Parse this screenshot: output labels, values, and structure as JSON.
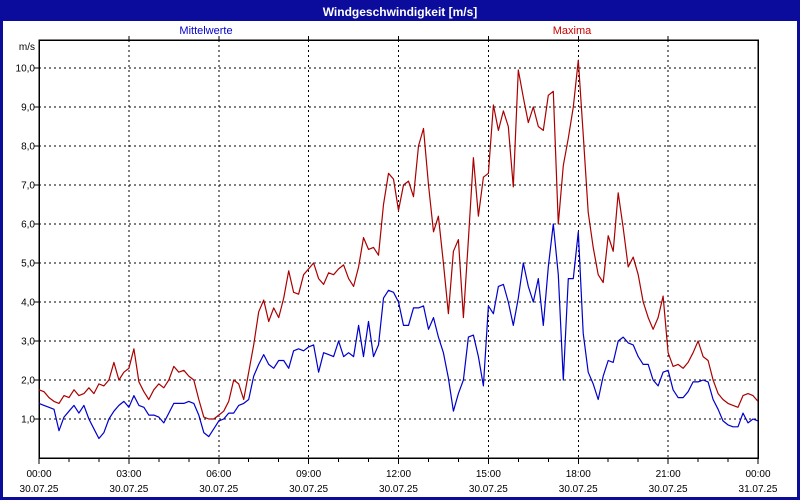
{
  "window": {
    "title": "Windgeschwindigkeit [m/s]"
  },
  "legend": {
    "mittelwerte": {
      "label": "Mittelwerte",
      "color": "#0000cc"
    },
    "maxima": {
      "label": "Maxima",
      "color": "#cc0000"
    }
  },
  "colors": {
    "titlebar_bg": "#0b0b9c",
    "titlebar_text": "#ffffff",
    "border": "#0b0b9c",
    "plot_bg": "#ffffff",
    "frame": "#000000",
    "grid": "#000000",
    "tick_text": "#000000"
  },
  "y_axis": {
    "unit": "m/s",
    "min": 0,
    "max": 10.72,
    "ticks": [
      {
        "value": 1,
        "label": "1,0"
      },
      {
        "value": 2,
        "label": "2,0"
      },
      {
        "value": 3,
        "label": "3,0"
      },
      {
        "value": 4,
        "label": "4,0"
      },
      {
        "value": 5,
        "label": "5,0"
      },
      {
        "value": 6,
        "label": "6,0"
      },
      {
        "value": 7,
        "label": "7,0"
      },
      {
        "value": 8,
        "label": "8,0"
      },
      {
        "value": 9,
        "label": "9,0"
      },
      {
        "value": 10,
        "label": "10,0"
      }
    ]
  },
  "x_axis": {
    "minor_tick_hours": 1,
    "major_tick_hours": 3,
    "labels": [
      {
        "hour": 0,
        "time": "00:00",
        "date": "30.07.25"
      },
      {
        "hour": 3,
        "time": "03:00",
        "date": "30.07.25"
      },
      {
        "hour": 6,
        "time": "06:00",
        "date": "30.07.25"
      },
      {
        "hour": 9,
        "time": "09:00",
        "date": "30.07.25"
      },
      {
        "hour": 12,
        "time": "12:00",
        "date": "30.07.25"
      },
      {
        "hour": 15,
        "time": "15:00",
        "date": "30.07.25"
      },
      {
        "hour": 18,
        "time": "18:00",
        "date": "30.07.25"
      },
      {
        "hour": 21,
        "time": "21:00",
        "date": "30.07.25"
      },
      {
        "hour": 24,
        "time": "00:00",
        "date": "31.07.25"
      }
    ]
  },
  "chart_data": {
    "type": "line",
    "title": "Windgeschwindigkeit [m/s]",
    "xlabel": "",
    "ylabel": "m/s",
    "ylim": [
      0,
      10.72
    ],
    "x_start_hour": 0,
    "x_end_hour": 24,
    "step_minutes": 10,
    "grid": "dashed",
    "legend_position": "top",
    "series": [
      {
        "name": "Mittelwerte",
        "color": "#0000cc",
        "values": [
          1.4,
          1.35,
          1.3,
          1.25,
          0.7,
          1.05,
          1.2,
          1.35,
          1.15,
          1.35,
          1.0,
          0.75,
          0.5,
          0.65,
          1.0,
          1.2,
          1.35,
          1.45,
          1.3,
          1.6,
          1.35,
          1.3,
          1.1,
          1.1,
          1.05,
          0.9,
          1.15,
          1.4,
          1.4,
          1.4,
          1.45,
          1.4,
          1.1,
          0.65,
          0.55,
          0.75,
          0.95,
          1.0,
          1.15,
          1.15,
          1.35,
          1.4,
          1.5,
          2.1,
          2.4,
          2.65,
          2.4,
          2.3,
          2.5,
          2.5,
          2.3,
          2.75,
          2.8,
          2.75,
          2.85,
          2.9,
          2.2,
          2.7,
          2.65,
          2.6,
          3.0,
          2.6,
          2.7,
          2.6,
          3.4,
          2.6,
          3.5,
          2.6,
          2.9,
          4.1,
          4.3,
          4.25,
          4.0,
          3.4,
          3.4,
          3.85,
          3.85,
          3.9,
          3.3,
          3.6,
          3.1,
          2.7,
          2.05,
          1.2,
          1.65,
          2.0,
          3.1,
          3.15,
          2.6,
          1.85,
          3.9,
          3.7,
          4.4,
          4.45,
          4.0,
          3.4,
          4.1,
          5.0,
          4.4,
          4.0,
          4.6,
          3.4,
          4.9,
          6.0,
          4.7,
          2.0,
          4.6,
          4.6,
          5.8,
          3.2,
          2.2,
          1.9,
          1.5,
          2.1,
          2.5,
          2.45,
          3.0,
          3.1,
          2.95,
          2.9,
          2.6,
          2.4,
          2.4,
          2.0,
          1.85,
          2.2,
          2.25,
          1.75,
          1.55,
          1.55,
          1.7,
          1.95,
          1.95,
          2.0,
          1.95,
          1.5,
          1.25,
          0.95,
          0.85,
          0.8,
          0.8,
          1.15,
          0.9,
          1.0,
          0.95
        ]
      },
      {
        "name": "Maxima",
        "color": "#aa0000",
        "values": [
          1.75,
          1.7,
          1.55,
          1.45,
          1.4,
          1.6,
          1.55,
          1.75,
          1.6,
          1.65,
          1.8,
          1.65,
          1.9,
          1.85,
          2.0,
          2.45,
          2.0,
          2.2,
          2.3,
          2.8,
          1.95,
          1.7,
          1.5,
          1.75,
          1.9,
          1.8,
          2.0,
          2.35,
          2.2,
          2.25,
          2.1,
          2.0,
          1.5,
          1.05,
          1.0,
          1.0,
          1.1,
          1.2,
          1.45,
          2.0,
          1.9,
          1.5,
          2.2,
          2.9,
          3.75,
          4.05,
          3.5,
          3.85,
          3.6,
          4.1,
          4.8,
          4.25,
          4.2,
          4.7,
          4.85,
          5.0,
          4.6,
          4.45,
          4.75,
          4.7,
          4.85,
          4.95,
          4.6,
          4.4,
          4.9,
          5.65,
          5.35,
          5.4,
          5.2,
          6.5,
          7.3,
          7.15,
          6.35,
          7.0,
          7.1,
          6.7,
          8.0,
          8.45,
          7.0,
          5.8,
          6.2,
          5.0,
          3.7,
          5.3,
          5.6,
          3.6,
          5.6,
          7.7,
          6.2,
          7.2,
          7.3,
          9.05,
          8.4,
          8.9,
          8.5,
          6.95,
          9.95,
          9.25,
          8.6,
          9.0,
          8.5,
          8.4,
          9.3,
          9.4,
          6.0,
          7.5,
          8.2,
          9.0,
          10.2,
          8.3,
          6.3,
          5.4,
          4.7,
          4.5,
          5.7,
          5.3,
          6.8,
          5.9,
          4.9,
          5.15,
          4.7,
          4.0,
          3.6,
          3.3,
          3.6,
          4.15,
          2.7,
          2.35,
          2.4,
          2.3,
          2.45,
          2.7,
          3.0,
          2.6,
          2.5,
          2.0,
          1.65,
          1.5,
          1.4,
          1.35,
          1.3,
          1.6,
          1.65,
          1.6,
          1.45
        ]
      }
    ]
  }
}
